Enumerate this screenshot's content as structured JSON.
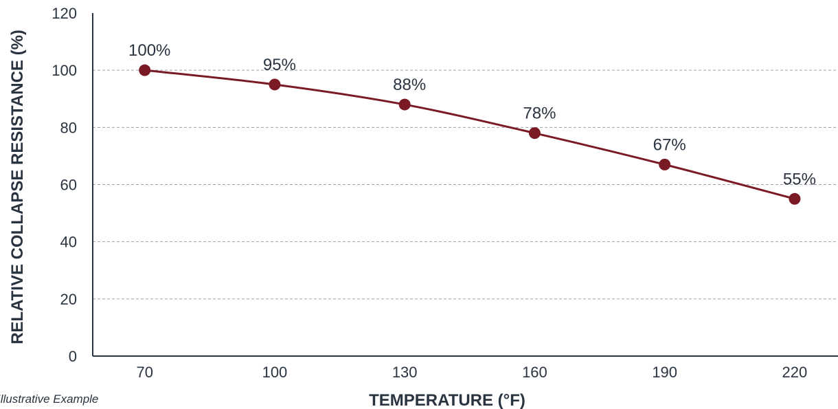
{
  "chart_data": {
    "type": "line",
    "title": "",
    "xlabel": "TEMPERATURE (°F)",
    "ylabel": "RELATIVE COLLAPSE RESISTANCE (%)",
    "x": [
      70,
      100,
      130,
      160,
      190,
      220
    ],
    "x_tick_labels": [
      "70",
      "100",
      "130",
      "160",
      "190",
      "220"
    ],
    "y_ticks": [
      0,
      20,
      40,
      60,
      80,
      100,
      120
    ],
    "y_tick_labels": [
      "0",
      "20",
      "40",
      "60",
      "80",
      "100",
      "120"
    ],
    "xlim": [
      58,
      230
    ],
    "ylim": [
      0,
      120
    ],
    "series": [
      {
        "values": [
          100,
          95,
          88,
          78,
          67,
          55
        ],
        "data_labels": [
          "100%",
          "95%",
          "88%",
          "78%",
          "67%",
          "55%"
        ],
        "color": "#7a1a25"
      }
    ],
    "grid": "horizontal dashed",
    "legend": "none",
    "note": "Illustrative Example"
  }
}
